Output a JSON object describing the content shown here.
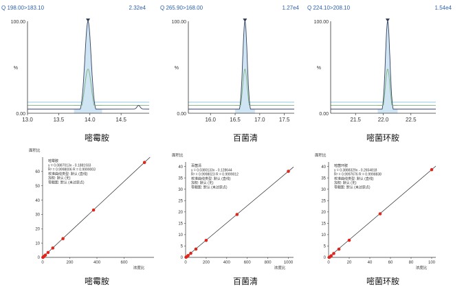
{
  "chromatograms": [
    {
      "header_left": "Q 198.00>183.10",
      "header_right": "2.32e4",
      "compound": "嘧霉胺",
      "y_top_label": "100.00",
      "y_mid_label": "%",
      "y_bottom_label": "0.00",
      "x_ticks": [
        "13.0",
        "13.5",
        "14.0",
        "14.5"
      ],
      "x_tick_values": [
        13.0,
        13.5,
        14.0,
        14.5
      ],
      "xlim": [
        13.0,
        14.95
      ],
      "peak_rt": 13.97,
      "peak_width": 0.05,
      "bump_rt": 14.78
    },
    {
      "header_left": "Q 265.90>168.00",
      "header_right": "1.27e4",
      "compound": "百菌清",
      "y_top_label": "100.00",
      "y_mid_label": "%",
      "y_bottom_label": "0.00",
      "x_ticks": [
        "16.0",
        "16.5",
        "17.0",
        "17.5"
      ],
      "x_tick_values": [
        16.0,
        16.5,
        17.0,
        17.5
      ],
      "xlim": [
        15.55,
        17.7
      ],
      "peak_rt": 16.7,
      "peak_width": 0.045,
      "bump_rt": null
    },
    {
      "header_left": "Q 224.10>208.10",
      "header_right": "1.54e4",
      "compound": "嘧菌环胺",
      "y_top_label": "100.00",
      "y_mid_label": "%",
      "y_bottom_label": "0.00",
      "x_ticks": [
        "21.5",
        "22.0",
        "22.5"
      ],
      "x_tick_values": [
        21.5,
        22.0,
        22.5
      ],
      "xlim": [
        21.05,
        22.95
      ],
      "peak_rt": 22.08,
      "peak_width": 0.04,
      "bump_rt": null
    }
  ],
  "calibrations": [
    {
      "ylabel": "面积比",
      "xlabel": "浓度比",
      "compound": "嘧霉胺",
      "legend_lines": [
        "嘧霉胺",
        "y = 0.0887013x - 0.1881933",
        "R² = 0.9998006   R = 0.9999003",
        "校准曲线类型: 默认 (直线)",
        "加权: 默认 (无)",
        "零截距: 默认 (未过原点)"
      ],
      "y_ticks": [
        "0",
        "10",
        "20",
        "30",
        "40",
        "50",
        "60"
      ],
      "y_tick_values": [
        0,
        10,
        20,
        30,
        40,
        50,
        60
      ],
      "x_ticks": [
        "0",
        "200",
        "400",
        "600"
      ],
      "x_tick_values": [
        0,
        200,
        400,
        600
      ],
      "xlim": [
        0,
        820
      ],
      "ylim": [
        0,
        70
      ],
      "slope": 0.0887013,
      "intercept": -0.1881933
    },
    {
      "ylabel": "面积比",
      "xlabel": "浓度比",
      "compound": "百菌清",
      "legend_lines": [
        "百菌清",
        "y = 0.0380133x - 0.128644",
        "R² = 0.9998023   R = 0.9999012",
        "校准曲线类型: 默认 (直线)",
        "加权: 默认 (无)",
        "零截距: 默认 (未过原点)"
      ],
      "y_ticks": [
        "0",
        "5",
        "10",
        "15",
        "20",
        "25",
        "30",
        "35",
        "40"
      ],
      "y_tick_values": [
        0,
        5,
        10,
        15,
        20,
        25,
        30,
        35,
        40
      ],
      "x_ticks": [
        "0",
        "200",
        "400",
        "600",
        "800",
        "1000"
      ],
      "x_tick_values": [
        0,
        200,
        400,
        600,
        800,
        1000
      ],
      "xlim": [
        0,
        1050
      ],
      "ylim": [
        0,
        42
      ],
      "slope": 0.0380133,
      "intercept": -0.128644
    },
    {
      "ylabel": "面积比",
      "xlabel": "浓度比",
      "compound": "嘧菌环胺",
      "legend_lines": [
        "嘧菌环胺",
        "y = 0.3888329x - 0.2654818",
        "R² = 0.9997676   R = 0.9998838",
        "校准曲线类型: 默认 (直线)",
        "加权: 默认 (无)",
        "零截距: 默认 (未过原点)"
      ],
      "y_ticks": [
        "0",
        "5",
        "10",
        "15",
        "20",
        "25",
        "30",
        "35",
        "40"
      ],
      "y_tick_values": [
        0,
        5,
        10,
        15,
        20,
        25,
        30,
        35,
        40
      ],
      "x_ticks": [
        "0",
        "20",
        "40",
        "60",
        "80",
        "100"
      ],
      "x_tick_values": [
        0,
        20,
        40,
        60,
        80,
        100
      ],
      "xlim": [
        0,
        104
      ],
      "ylim": [
        0,
        42
      ],
      "slope": 0.3888329,
      "intercept": -0.2654818
    }
  ],
  "chart_data": [
    {
      "type": "line",
      "title": "Q 198.00>183.10",
      "xlim": [
        13.0,
        14.95
      ],
      "ylim": [
        0,
        100
      ],
      "peak_retention_time": 13.97,
      "peak_intensity_percent": 100,
      "max_intensity": "2.32e4"
    },
    {
      "type": "line",
      "title": "Q 265.90>168.00",
      "xlim": [
        15.55,
        17.7
      ],
      "ylim": [
        0,
        100
      ],
      "peak_retention_time": 16.7,
      "peak_intensity_percent": 100,
      "max_intensity": "1.27e4"
    },
    {
      "type": "line",
      "title": "Q 224.10>208.10",
      "xlim": [
        21.05,
        22.95
      ],
      "ylim": [
        0,
        100
      ],
      "peak_retention_time": 22.08,
      "peak_intensity_percent": 100,
      "max_intensity": "1.54e4"
    },
    {
      "type": "scatter",
      "xlabel": "浓度比",
      "ylabel": "面积比",
      "x": [
        2,
        5,
        10,
        20,
        40,
        75,
        150,
        375,
        750
      ],
      "y": [
        0.0,
        0.26,
        0.7,
        1.6,
        3.4,
        6.5,
        13.1,
        33.1,
        66.3
      ],
      "fit": {
        "slope": 0.0887013,
        "intercept": -0.1881933
      }
    },
    {
      "type": "scatter",
      "xlabel": "浓度比",
      "ylabel": "面积比",
      "x": [
        5,
        10,
        25,
        50,
        100,
        200,
        500,
        1000
      ],
      "y": [
        0.06,
        0.25,
        0.82,
        1.77,
        3.67,
        7.47,
        18.88,
        37.88
      ],
      "fit": {
        "slope": 0.0380133,
        "intercept": -0.128644
      }
    },
    {
      "type": "scatter",
      "xlabel": "浓度比",
      "ylabel": "面积比",
      "x": [
        0.5,
        1,
        2.5,
        5,
        10,
        20,
        50,
        100
      ],
      "y": [
        0.0,
        0.12,
        0.71,
        1.68,
        3.62,
        7.51,
        19.18,
        38.62
      ],
      "fit": {
        "slope": 0.3888329,
        "intercept": -0.2654818
      }
    }
  ],
  "colors": {
    "header_blue": "#2d5fa8",
    "trace_fill": "#cfe5f3",
    "trace_dark": "#333f60",
    "trace_green": "#7cb07a",
    "trace_light_blue": "#8fc9e8",
    "point_red": "#e0261c",
    "axis": "#333333"
  }
}
